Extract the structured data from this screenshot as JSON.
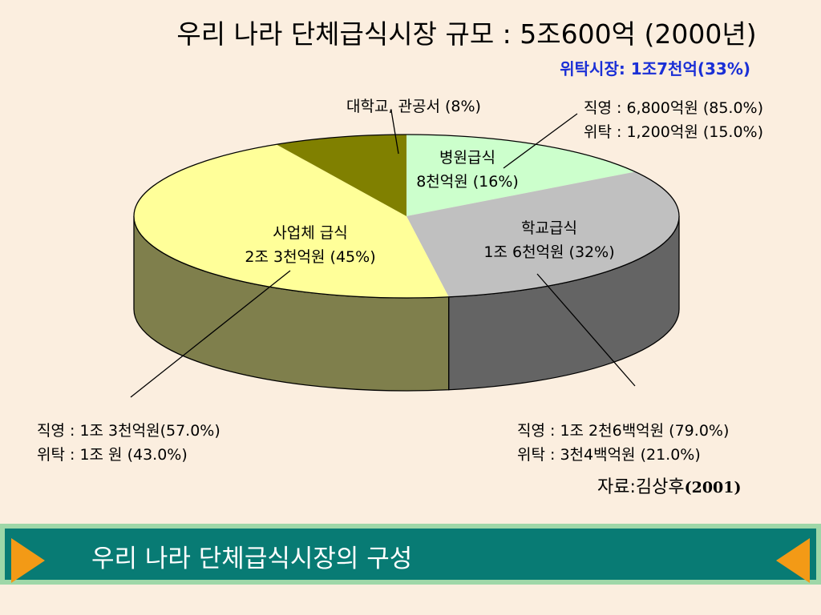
{
  "title": "우리 나라 단체급식시장 규모 : 5조600억 (2000년)",
  "subtitle": "위탁시장: 1조7천억(33%)",
  "chart_data": {
    "type": "pie",
    "title": "우리 나라 단체급식시장 규모 : 5조600억 (2000년)",
    "slices": [
      {
        "name": "병원급식",
        "label": "8천억원 (16%)",
        "value": 16,
        "color": "#CCFFCC",
        "side_color": "#8FB28F"
      },
      {
        "name": "학교급식",
        "label": "1조 6천억원 (32%)",
        "value": 32,
        "color": "#C0C0C0",
        "side_color": "#646464"
      },
      {
        "name": "사업체 급식",
        "label": "2조 3천억원 (45%)",
        "value": 45,
        "color": "#FFFF99",
        "side_color": "#7F7F4C"
      },
      {
        "name": "대학교, 관공서",
        "label": "(8%)",
        "value": 8,
        "color": "#808000",
        "side_color": "#4D4D00"
      }
    ],
    "annotations": [
      {
        "line1": "직영 : 6,800억원 (85.0%)",
        "line2": "위탁 : 1,200억원 (15.0%)"
      },
      {
        "line1": "직영 : 1조 2천6백억원 (79.0%)",
        "line2": "위탁 : 3천4백억원 (21.0%)"
      },
      {
        "line1": "직영 : 1조 3천억원(57.0%)",
        "line2": "위탁 : 1조 원 (43.0%)"
      }
    ]
  },
  "labels": {
    "hospital_name": "병원급식",
    "hospital_value": "8천억원 (16%)",
    "school_name": "학교급식",
    "school_value": "1조 6천억원 (32%)",
    "business_name": "사업체 급식",
    "business_value": "2조 3천억원 (45%)",
    "univ": "대학교, 관공서 (8%)"
  },
  "source_label": "자료:김상후",
  "source_year": "(2001)",
  "banner": {
    "text": "우리 나라 단체급식시장의 구성",
    "arrow_color": "#F39A16",
    "bg_color": "#087B74",
    "border_color": "#9ED7A8"
  }
}
